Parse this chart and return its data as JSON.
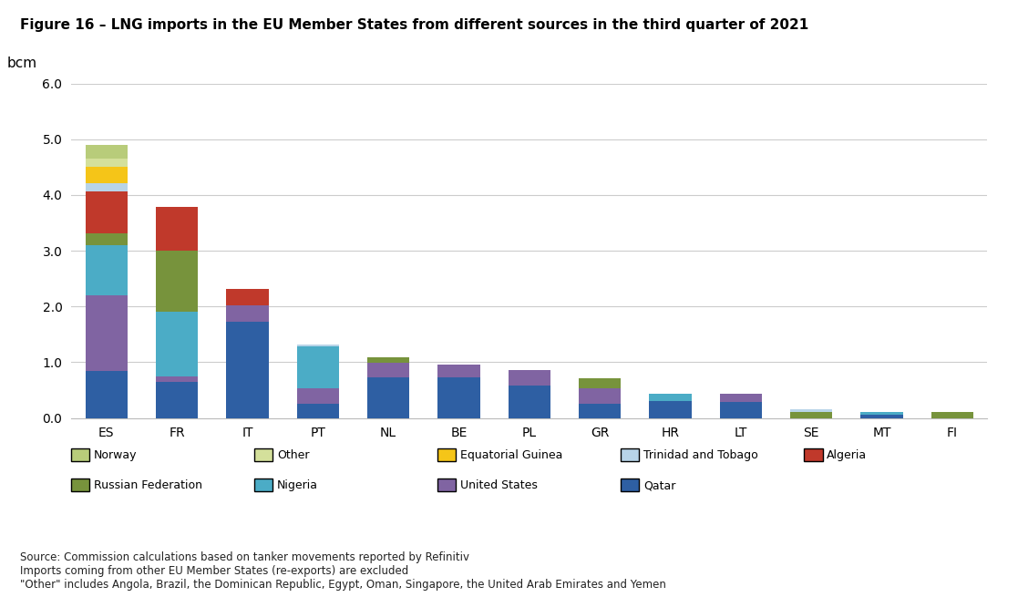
{
  "title": "Figure 16 – LNG imports in the EU Member States from different sources in the third quarter of 2021",
  "ylabel": "bcm",
  "categories": [
    "ES",
    "FR",
    "IT",
    "PT",
    "NL",
    "BE",
    "PL",
    "GR",
    "HR",
    "LT",
    "SE",
    "MT",
    "FI"
  ],
  "series": {
    "Qatar": [
      0.85,
      0.65,
      1.72,
      0.25,
      0.72,
      0.72,
      0.58,
      0.25,
      0.3,
      0.28,
      0.0,
      0.05,
      0.0
    ],
    "United States": [
      1.35,
      0.1,
      0.3,
      0.28,
      0.27,
      0.24,
      0.28,
      0.28,
      0.0,
      0.15,
      0.0,
      0.0,
      0.0
    ],
    "Nigeria": [
      0.9,
      1.15,
      0.0,
      0.75,
      0.0,
      0.0,
      0.0,
      0.0,
      0.14,
      0.0,
      0.0,
      0.05,
      0.0
    ],
    "Russian Federation": [
      0.22,
      1.1,
      0.0,
      0.0,
      0.1,
      0.0,
      0.0,
      0.18,
      0.0,
      0.0,
      0.1,
      0.0,
      0.1
    ],
    "Algeria": [
      0.75,
      0.78,
      0.3,
      0.0,
      0.0,
      0.0,
      0.0,
      0.0,
      0.0,
      0.0,
      0.0,
      0.0,
      0.0
    ],
    "Trinidad and Tobago": [
      0.14,
      0.0,
      0.0,
      0.04,
      0.0,
      0.0,
      0.0,
      0.0,
      0.0,
      0.0,
      0.05,
      0.0,
      0.0
    ],
    "Equatorial Guinea": [
      0.3,
      0.0,
      0.0,
      0.0,
      0.0,
      0.0,
      0.0,
      0.0,
      0.0,
      0.0,
      0.0,
      0.0,
      0.0
    ],
    "Other": [
      0.15,
      0.0,
      0.0,
      0.0,
      0.0,
      0.0,
      0.0,
      0.0,
      0.0,
      0.0,
      0.0,
      0.0,
      0.0
    ],
    "Norway": [
      0.24,
      0.0,
      0.0,
      0.0,
      0.0,
      0.0,
      0.0,
      0.0,
      0.0,
      0.0,
      0.0,
      0.0,
      0.0
    ]
  },
  "colors": {
    "Qatar": "#2e5fa3",
    "United States": "#8064a2",
    "Nigeria": "#4bacc6",
    "Russian Federation": "#77933c",
    "Algeria": "#c0392b",
    "Trinidad and Tobago": "#b8d4e8",
    "Equatorial Guinea": "#f5c518",
    "Other": "#d4e09b",
    "Norway": "#b8cc7a"
  },
  "ylim": [
    0,
    6.0
  ],
  "yticks": [
    0.0,
    1.0,
    2.0,
    3.0,
    4.0,
    5.0,
    6.0
  ],
  "source_text": "Source: Commission calculations based on tanker movements reported by Refinitiv\nImports coming from other EU Member States (re-exports) are excluded\n\"Other\" includes Angola, Brazil, the Dominican Republic, Egypt, Oman, Singapore, the United Arab Emirates and Yemen",
  "background_color": "#ffffff",
  "grid_color": "#cccccc"
}
